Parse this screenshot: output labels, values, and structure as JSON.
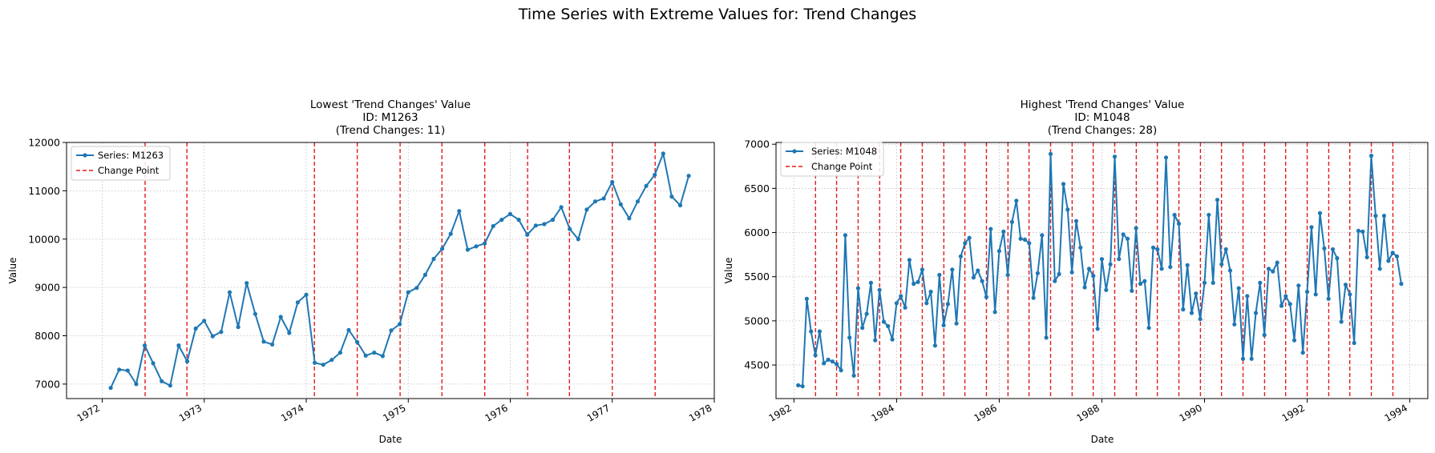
{
  "suptitle": "Time Series with Extreme Values for: Trend Changes",
  "chart_data": [
    {
      "type": "line",
      "title_lines": [
        "Lowest 'Trend Changes' Value",
        "ID: M1263",
        "(Trend Changes: 11)"
      ],
      "xlabel": "Date",
      "ylabel": "Value",
      "xlim": [
        1971.65,
        1978.0
      ],
      "ylim": [
        6700,
        12000
      ],
      "xticks": [
        1972,
        1973,
        1974,
        1975,
        1976,
        1977,
        1978
      ],
      "xtick_labels": [
        "1972",
        "1973",
        "1974",
        "1975",
        "1976",
        "1977",
        "1978"
      ],
      "yticks": [
        7000,
        8000,
        9000,
        10000,
        11000,
        12000
      ],
      "ytick_labels": [
        "7000",
        "8000",
        "9000",
        "10000",
        "11000",
        "12000"
      ],
      "grid": true,
      "legend_position": "top-left",
      "legend": [
        "Series: M1263",
        "Change Point"
      ],
      "series": [
        {
          "name": "Series: M1263",
          "color": "#1f77b4",
          "x_start": 1972.083,
          "x_step": 0.08333,
          "values": [
            6920,
            7300,
            7280,
            7000,
            7800,
            7430,
            7060,
            6970,
            7800,
            7470,
            8150,
            8310,
            7990,
            8080,
            8900,
            8180,
            9090,
            8450,
            7880,
            7820,
            8390,
            8060,
            8690,
            8850,
            7440,
            7400,
            7500,
            7650,
            8120,
            7870,
            7590,
            7650,
            7580,
            8110,
            8240,
            8900,
            8990,
            9260,
            9590,
            9800,
            10110,
            10580,
            9780,
            9850,
            9910,
            10270,
            10400,
            10520,
            10400,
            10090,
            10280,
            10310,
            10400,
            10660,
            10210,
            10000,
            10610,
            10780,
            10840,
            11180,
            10720,
            10430,
            10780,
            11100,
            11330,
            11770,
            10880,
            10700,
            11310
          ]
        }
      ],
      "change_points": [
        1972.42,
        1972.83,
        1974.08,
        1974.5,
        1974.92,
        1975.33,
        1975.75,
        1976.17,
        1976.58,
        1977.0,
        1977.42
      ]
    },
    {
      "type": "line",
      "title_lines": [
        "Highest 'Trend Changes' Value",
        "ID: M1048",
        "(Trend Changes: 28)"
      ],
      "xlabel": "Date",
      "ylabel": "Value",
      "xlim": [
        1981.65,
        1994.35
      ],
      "ylim": [
        4120,
        7020
      ],
      "xticks": [
        1982,
        1984,
        1986,
        1988,
        1990,
        1992,
        1994
      ],
      "xtick_labels": [
        "1982",
        "1984",
        "1986",
        "1988",
        "1990",
        "1992",
        "1994"
      ],
      "yticks": [
        4500,
        5000,
        5500,
        6000,
        6500,
        7000
      ],
      "ytick_labels": [
        "4500",
        "5000",
        "5500",
        "6000",
        "6500",
        "7000"
      ],
      "grid": true,
      "legend_position": "top-left",
      "legend": [
        "Series: M1048",
        "Change Point"
      ],
      "series": [
        {
          "name": "Series: M1048",
          "color": "#1f77b4",
          "x_start": 1982.083,
          "x_step": 0.08333,
          "values": [
            4270,
            4260,
            5250,
            4880,
            4610,
            4880,
            4520,
            4560,
            4540,
            4510,
            4440,
            5970,
            4810,
            4380,
            5370,
            4920,
            5080,
            5430,
            4780,
            5350,
            4990,
            4940,
            4790,
            5200,
            5280,
            5150,
            5690,
            5420,
            5440,
            5580,
            5200,
            5330,
            4720,
            5520,
            4950,
            5190,
            5580,
            4970,
            5730,
            5880,
            5940,
            5490,
            5570,
            5450,
            5270,
            6040,
            5100,
            5790,
            6010,
            5520,
            6120,
            6360,
            5930,
            5920,
            5880,
            5260,
            5540,
            5970,
            4810,
            6890,
            5450,
            5530,
            6550,
            6260,
            5550,
            6130,
            5830,
            5380,
            5590,
            5510,
            4910,
            5700,
            5350,
            5640,
            6860,
            5700,
            5980,
            5930,
            5340,
            6050,
            5420,
            5450,
            4920,
            5830,
            5810,
            5590,
            6850,
            5610,
            6200,
            6100,
            5130,
            5630,
            5090,
            5310,
            5020,
            5430,
            6200,
            5430,
            6370,
            5640,
            5810,
            5570,
            4960,
            5370,
            4570,
            5280,
            4570,
            5090,
            5430,
            4840,
            5590,
            5560,
            5660,
            5170,
            5280,
            5190,
            4780,
            5400,
            4640,
            5330,
            6060,
            5300,
            6220,
            5820,
            5250,
            5810,
            5710,
            4990,
            5410,
            5300,
            4750,
            6020,
            6010,
            5720,
            6870,
            6190,
            5590,
            6190,
            5680,
            5770,
            5730,
            5420
          ]
        }
      ],
      "change_points": [
        1982.42,
        1982.83,
        1983.25,
        1983.67,
        1984.08,
        1984.5,
        1984.92,
        1985.33,
        1985.75,
        1986.17,
        1986.58,
        1987.0,
        1987.42,
        1987.83,
        1988.25,
        1988.67,
        1989.08,
        1989.5,
        1989.92,
        1990.33,
        1990.75,
        1991.17,
        1991.58,
        1992.0,
        1992.42,
        1992.83,
        1993.25,
        1993.67
      ]
    }
  ]
}
